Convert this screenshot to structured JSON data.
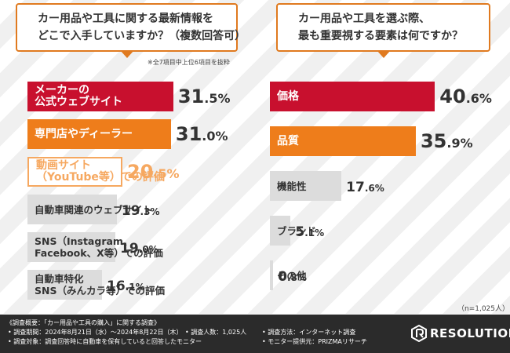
{
  "chart_data": [
    {
      "type": "bar",
      "orientation": "horizontal",
      "title": "カー用品や工具に関する最新情報をどこで入手していますか？（複数回答可）",
      "title_lines": [
        "カー用品や工具に関する最新情報を",
        "どこで入手していますか？（複数回答可）"
      ],
      "note": "※全7項目中上位6項目を抜粋",
      "categories": [
        [
          "メーカーの",
          "公式ウェブサイト"
        ],
        [
          "専門店やディーラー"
        ],
        [
          "動画サイト",
          "（YouTube等）での評価"
        ],
        [
          "自動車関連のウェブサイト"
        ],
        [
          "SNS（Instagram、",
          "Facebook、X等）での評価"
        ],
        [
          "自動車特化",
          "SNS（みんカラ等）での評価"
        ]
      ],
      "values": [
        31.5,
        31.0,
        20.5,
        19.3,
        19.0,
        16.1
      ],
      "value_int": [
        "31",
        "31",
        "20",
        "19",
        "19",
        "16"
      ],
      "value_dec": [
        ".5%",
        ".0%",
        ".5%",
        ".3%",
        ".0%",
        ".1%"
      ]
    },
    {
      "type": "bar",
      "orientation": "horizontal",
      "title": "カー用品や工具を選ぶ際、最も重要視する要素は何ですか？",
      "title_lines": [
        "カー用品や工具を選ぶ際、",
        "最も重要視する要素は何ですか？"
      ],
      "categories": [
        [
          "価格"
        ],
        [
          "品質"
        ],
        [
          "機能性"
        ],
        [
          "ブランド"
        ],
        [
          "その他"
        ]
      ],
      "values": [
        40.6,
        35.9,
        17.6,
        5.1,
        0.8
      ],
      "value_int": [
        "40",
        "35",
        "17",
        "5",
        "0"
      ],
      "value_dec": [
        ".6%",
        ".9%",
        ".6%",
        ".1%",
        ".8%"
      ]
    }
  ],
  "respondents": "（n=1,025人）",
  "colors": {
    "red": "#c8102e",
    "orange": "#ee7d1b",
    "gray": "#dcdcdc",
    "orange_light": "#f6a860"
  },
  "footer": {
    "title": "《調査概要：「カー用品や工具の購入」に関する調査》",
    "items": [
      "• 調査期間：2024年8月21日（水）～2024年8月22日（木）",
      "• 調査人数：1,025人",
      "• 調査方法：インターネット調査",
      "• 調査対象：調査回答時に自動車を保有していると回答したモニター",
      "• モニター提供元：PRIZMAリサーチ"
    ],
    "brand": "RESOLUTION"
  }
}
